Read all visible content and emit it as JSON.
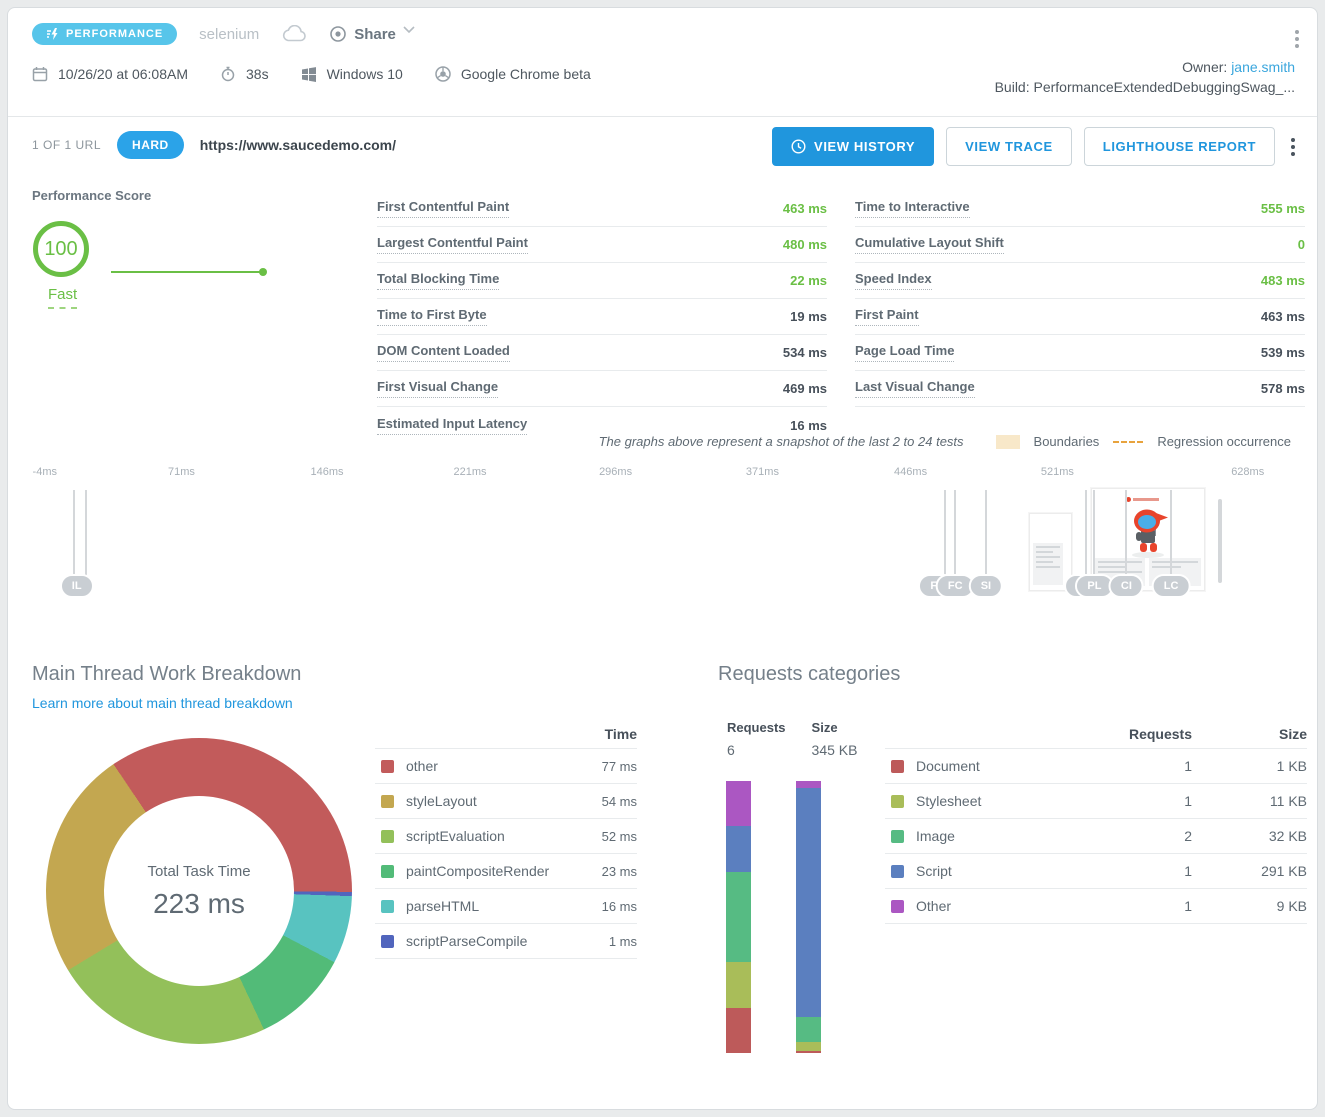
{
  "header": {
    "badge": "PERFORMANCE",
    "job_name": "selenium",
    "share_label": "Share",
    "date": "10/26/20 at 06:08AM",
    "duration": "38s",
    "os": "Windows 10",
    "browser": "Google Chrome beta",
    "owner_label": "Owner: ",
    "owner": "jane.smith",
    "build": "Build: PerformanceExtendedDebuggingSwag_..."
  },
  "toolbar": {
    "url_count": "1 OF 1 URL",
    "difficulty_badge": "HARD",
    "url": "https://www.saucedemo.com/",
    "view_history": "VIEW HISTORY",
    "view_trace": "VIEW TRACE",
    "lighthouse_report": "LIGHTHOUSE REPORT"
  },
  "score": {
    "title": "Performance Score",
    "value": "100",
    "label": "Fast"
  },
  "metrics_left": [
    {
      "label": "First Contentful Paint",
      "value": "463 ms",
      "tone": "green"
    },
    {
      "label": "Largest Contentful Paint",
      "value": "480 ms",
      "tone": "green"
    },
    {
      "label": "Total Blocking Time",
      "value": "22 ms",
      "tone": "green"
    },
    {
      "label": "Time to First Byte",
      "value": "19 ms",
      "tone": "dark"
    },
    {
      "label": "DOM Content Loaded",
      "value": "534 ms",
      "tone": "dark"
    },
    {
      "label": "First Visual Change",
      "value": "469 ms",
      "tone": "dark"
    },
    {
      "label": "Estimated Input Latency",
      "value": "16 ms",
      "tone": "dark"
    }
  ],
  "metrics_right": [
    {
      "label": "Time to Interactive",
      "value": "555 ms",
      "tone": "green"
    },
    {
      "label": "Cumulative Layout Shift",
      "value": "0",
      "tone": "green"
    },
    {
      "label": "Speed Index",
      "value": "483 ms",
      "tone": "green"
    },
    {
      "label": "First Paint",
      "value": "463 ms",
      "tone": "dark"
    },
    {
      "label": "Page Load Time",
      "value": "539 ms",
      "tone": "dark"
    },
    {
      "label": "Last Visual Change",
      "value": "578 ms",
      "tone": "dark"
    }
  ],
  "note": {
    "text": "The graphs above represent a snapshot of the last 2 to 24 tests",
    "boundaries_label": "Boundaries",
    "boundaries_color": "#f8e8c9",
    "regression_label": "Regression occurrence",
    "regression_color": "#e8a33d"
  },
  "timeline": {
    "ticks": [
      {
        "label": "-4ms",
        "x": 1.0
      },
      {
        "label": "71ms",
        "x": 11.7
      },
      {
        "label": "146ms",
        "x": 23.1
      },
      {
        "label": "221ms",
        "x": 34.3
      },
      {
        "label": "296ms",
        "x": 45.7
      },
      {
        "label": "371ms",
        "x": 57.2
      },
      {
        "label": "446ms",
        "x": 68.8
      },
      {
        "label": "521ms",
        "x": 80.3
      },
      {
        "label": "628ms",
        "x": 95.2
      }
    ],
    "lines": [
      3.3,
      4.2,
      71.5,
      72.3,
      74.7,
      82.5,
      83.2,
      85.7,
      89.2
    ],
    "pills": [
      {
        "label": "FP",
        "x": 70.9
      },
      {
        "label": "DC",
        "x": 82.4
      },
      {
        "label": "IL",
        "x": 3.5
      },
      {
        "label": "FC",
        "x": 72.3
      },
      {
        "label": "SI",
        "x": 74.7
      },
      {
        "label": "PL",
        "x": 83.2
      },
      {
        "label": "CI",
        "x": 85.7
      },
      {
        "label": "LC",
        "x": 89.2
      }
    ]
  },
  "main_thread": {
    "title": "Main Thread Work Breakdown",
    "link": "Learn more about main thread breakdown",
    "center_label": "Total Task Time",
    "center_value": "223 ms",
    "time_header": "Time",
    "rows": [
      {
        "label": "other",
        "value": "77 ms",
        "color": "#c25b5b"
      },
      {
        "label": "styleLayout",
        "value": "54 ms",
        "color": "#c3a750"
      },
      {
        "label": "scriptEvaluation",
        "value": "52 ms",
        "color": "#93c05a"
      },
      {
        "label": "paintCompositeRender",
        "value": "23 ms",
        "color": "#52bb78"
      },
      {
        "label": "parseHTML",
        "value": "16 ms",
        "color": "#58c3c0"
      },
      {
        "label": "scriptParseCompile",
        "value": "1 ms",
        "color": "#5165bd"
      }
    ]
  },
  "requests": {
    "title": "Requests categories",
    "summary": {
      "requests_header": "Requests",
      "requests_total": "6",
      "size_header": "Size",
      "size_total": "345 KB"
    },
    "table_headers": {
      "requests": "Requests",
      "size": "Size"
    },
    "rows": [
      {
        "label": "Document",
        "requests": "1",
        "size": "1 KB",
        "color": "#bd5a5a"
      },
      {
        "label": "Stylesheet",
        "requests": "1",
        "size": "11 KB",
        "color": "#a9bd59"
      },
      {
        "label": "Image",
        "requests": "2",
        "size": "32 KB",
        "color": "#56bb83"
      },
      {
        "label": "Script",
        "requests": "1",
        "size": "291 KB",
        "color": "#5b7fbf"
      },
      {
        "label": "Other",
        "requests": "1",
        "size": "9 KB",
        "color": "#ab57c2"
      }
    ]
  },
  "chart_data": [
    {
      "type": "pie",
      "title": "Main Thread Work Breakdown",
      "center_label": "Total Task Time",
      "center_value": "223 ms",
      "categories": [
        "other",
        "styleLayout",
        "scriptEvaluation",
        "paintCompositeRender",
        "parseHTML",
        "scriptParseCompile"
      ],
      "values": [
        77,
        54,
        52,
        23,
        16,
        1
      ],
      "unit": "ms",
      "colors": [
        "#c25b5b",
        "#c3a750",
        "#93c05a",
        "#52bb78",
        "#58c3c0",
        "#5165bd"
      ],
      "start_angle": -34,
      "render_order": [
        0,
        5,
        4,
        3,
        2,
        1
      ],
      "donut_hole": true
    },
    {
      "type": "bar",
      "title": "Requests categories",
      "stacked": true,
      "orientation": "vertical",
      "categories": [
        "Document",
        "Stylesheet",
        "Image",
        "Script",
        "Other"
      ],
      "colors": [
        "#bd5a5a",
        "#a9bd59",
        "#56bb83",
        "#5b7fbf",
        "#ab57c2"
      ],
      "series": [
        {
          "name": "Requests",
          "values": [
            1,
            1,
            2,
            1,
            1
          ],
          "total_label": "6"
        },
        {
          "name": "Size (KB)",
          "values": [
            1,
            11,
            32,
            291,
            9
          ],
          "total_label": "345 KB"
        }
      ],
      "stack_order_top_to_bottom": [
        "Other",
        "Script",
        "Image",
        "Stylesheet",
        "Document"
      ]
    }
  ]
}
